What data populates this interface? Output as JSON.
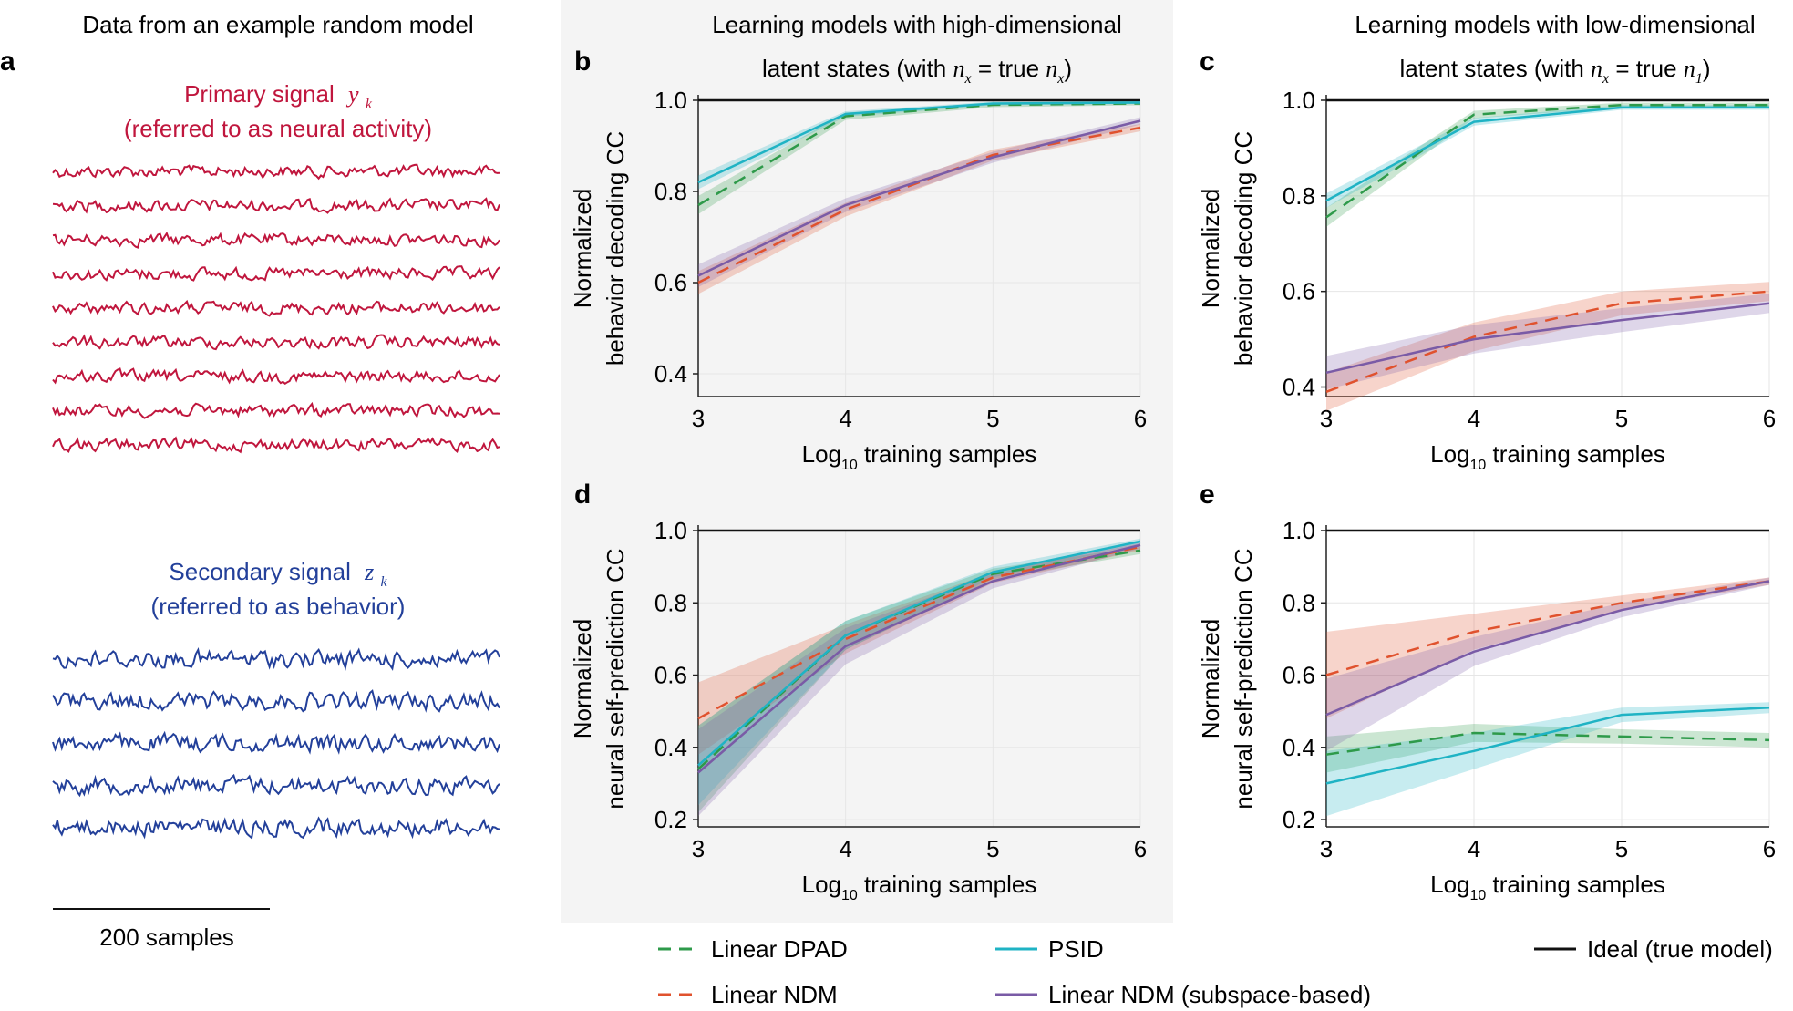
{
  "panel_a": {
    "letter": "a",
    "title": "Data from an example random model",
    "primary": {
      "label": "Primary signal",
      "symbol": "y",
      "subscript": "k",
      "sublabel": "(referred to as neural activity)",
      "n_traces": 9,
      "color": "#c0163d"
    },
    "secondary": {
      "label": "Secondary signal",
      "symbol": "z",
      "subscript": "k",
      "sublabel": "(referred to as behavior)",
      "n_traces": 5,
      "color": "#23409a"
    },
    "scalebar_label": "200 samples"
  },
  "column_titles": {
    "high": {
      "line1": "Learning models with high-dimensional",
      "line2_pre": "latent states (with ",
      "lhs": "n",
      "lhs_sub": "x",
      "mid": " = true ",
      "rhs": "n",
      "rhs_sub": "x",
      "end": ")"
    },
    "low": {
      "line1": "Learning models with low-dimensional",
      "line2_pre": "latent states (with ",
      "lhs": "n",
      "lhs_sub": "x",
      "mid": " = true ",
      "rhs": "n",
      "rhs_sub": "1",
      "end": ")"
    }
  },
  "colors": {
    "dpad": "#2e9a4a",
    "ndm": "#e0522e",
    "psid": "#1fb3c4",
    "subspace": "#7a5ba6",
    "ideal": "#111111",
    "shade_bg": "#f4f4f4"
  },
  "legend": [
    {
      "key": "dpad",
      "label": "Linear DPAD",
      "dash": true
    },
    {
      "key": "psid",
      "label": "PSID",
      "dash": false
    },
    {
      "key": "ideal",
      "label": "Ideal (true model)",
      "dash": false
    },
    {
      "key": "ndm",
      "label": "Linear NDM",
      "dash": true
    },
    {
      "key": "subspace",
      "label": "Linear NDM (subspace-based)",
      "dash": false
    }
  ],
  "chart_data": [
    {
      "id": "b",
      "letter": "b",
      "type": "line",
      "xlabel_base": "Log",
      "xlabel_sub": "10",
      "xlabel_rest": " training samples",
      "ylabel_lines": [
        "Normalized",
        "behavior decoding CC"
      ],
      "x": [
        3,
        4,
        5,
        6
      ],
      "xlim": [
        3,
        6
      ],
      "ylim": [
        0.35,
        1.0
      ],
      "yticks": [
        0.4,
        0.6,
        0.8,
        1.0
      ],
      "ytick_labels": [
        "0.4",
        "0.6",
        "0.8",
        "1.0"
      ],
      "xtick_labels": [
        "3",
        "4",
        "5",
        "6"
      ],
      "ideal": 1.0,
      "series": [
        {
          "name": "Linear DPAD",
          "key": "dpad",
          "values": [
            0.77,
            0.965,
            0.99,
            0.993
          ],
          "band": [
            0.02,
            0.008,
            0.005,
            0.004
          ]
        },
        {
          "name": "PSID",
          "key": "psid",
          "values": [
            0.82,
            0.97,
            0.993,
            0.995
          ],
          "band": [
            0.015,
            0.006,
            0.004,
            0.003
          ]
        },
        {
          "name": "Linear NDM",
          "key": "ndm",
          "values": [
            0.6,
            0.76,
            0.88,
            0.94
          ],
          "band": [
            0.025,
            0.015,
            0.012,
            0.008
          ]
        },
        {
          "name": "Linear NDM (subspace-based)",
          "key": "subspace",
          "values": [
            0.615,
            0.77,
            0.875,
            0.955
          ],
          "band": [
            0.025,
            0.015,
            0.012,
            0.008
          ]
        }
      ]
    },
    {
      "id": "c",
      "letter": "c",
      "type": "line",
      "xlabel_base": "Log",
      "xlabel_sub": "10",
      "xlabel_rest": " training samples",
      "ylabel_lines": [
        "Normalized",
        "behavior decoding CC"
      ],
      "x": [
        3,
        4,
        5,
        6
      ],
      "xlim": [
        3,
        6
      ],
      "ylim": [
        0.38,
        1.0
      ],
      "yticks": [
        0.4,
        0.6,
        0.8,
        1.0
      ],
      "ytick_labels": [
        "0.4",
        "0.6",
        "0.8",
        "1.0"
      ],
      "xtick_labels": [
        "3",
        "4",
        "5",
        "6"
      ],
      "ideal": 1.0,
      "series": [
        {
          "name": "Linear DPAD",
          "key": "dpad",
          "values": [
            0.755,
            0.97,
            0.99,
            0.99
          ],
          "band": [
            0.02,
            0.008,
            0.005,
            0.005
          ]
        },
        {
          "name": "PSID",
          "key": "psid",
          "values": [
            0.79,
            0.955,
            0.985,
            0.985
          ],
          "band": [
            0.015,
            0.008,
            0.005,
            0.005
          ]
        },
        {
          "name": "Linear NDM",
          "key": "ndm",
          "values": [
            0.39,
            0.505,
            0.575,
            0.6
          ],
          "band": [
            0.04,
            0.03,
            0.025,
            0.02
          ]
        },
        {
          "name": "Linear NDM (subspace-based)",
          "key": "subspace",
          "values": [
            0.43,
            0.5,
            0.54,
            0.575
          ],
          "band": [
            0.035,
            0.03,
            0.025,
            0.02
          ]
        }
      ]
    },
    {
      "id": "d",
      "letter": "d",
      "type": "line",
      "xlabel_base": "Log",
      "xlabel_sub": "10",
      "xlabel_rest": " training samples",
      "ylabel_lines": [
        "Normalized",
        "neural self-prediction CC"
      ],
      "x": [
        3,
        4,
        5,
        6
      ],
      "xlim": [
        3,
        6
      ],
      "ylim": [
        0.18,
        1.0
      ],
      "yticks": [
        0.2,
        0.4,
        0.6,
        0.8,
        1.0
      ],
      "ytick_labels": [
        "0.2",
        "0.4",
        "0.6",
        "0.8",
        "1.0"
      ],
      "xtick_labels": [
        "3",
        "4",
        "5",
        "6"
      ],
      "ideal": 1.0,
      "series": [
        {
          "name": "Linear DPAD",
          "key": "dpad",
          "values": [
            0.34,
            0.71,
            0.88,
            0.945
          ],
          "band": [
            0.12,
            0.04,
            0.015,
            0.01
          ]
        },
        {
          "name": "Linear NDM",
          "key": "ndm",
          "values": [
            0.48,
            0.7,
            0.87,
            0.955
          ],
          "band": [
            0.1,
            0.04,
            0.015,
            0.01
          ]
        },
        {
          "name": "PSID",
          "key": "psid",
          "values": [
            0.35,
            0.71,
            0.885,
            0.97
          ],
          "band": [
            0.11,
            0.04,
            0.015,
            0.008
          ]
        },
        {
          "name": "Linear NDM (subspace-based)",
          "key": "subspace",
          "values": [
            0.33,
            0.68,
            0.86,
            0.96
          ],
          "band": [
            0.12,
            0.05,
            0.02,
            0.01
          ]
        }
      ]
    },
    {
      "id": "e",
      "letter": "e",
      "type": "line",
      "xlabel_base": "Log",
      "xlabel_sub": "10",
      "xlabel_rest": " training samples",
      "ylabel_lines": [
        "Normalized",
        "neural self-prediction CC"
      ],
      "x": [
        3,
        4,
        5,
        6
      ],
      "xlim": [
        3,
        6
      ],
      "ylim": [
        0.18,
        1.0
      ],
      "yticks": [
        0.2,
        0.4,
        0.6,
        0.8,
        1.0
      ],
      "ytick_labels": [
        "0.2",
        "0.4",
        "0.6",
        "0.8",
        "1.0"
      ],
      "xtick_labels": [
        "3",
        "4",
        "5",
        "6"
      ],
      "ideal": 1.0,
      "series": [
        {
          "name": "Linear DPAD",
          "key": "dpad",
          "values": [
            0.38,
            0.44,
            0.43,
            0.42
          ],
          "band": [
            0.05,
            0.025,
            0.02,
            0.02
          ]
        },
        {
          "name": "PSID",
          "key": "psid",
          "values": [
            0.3,
            0.39,
            0.49,
            0.51
          ],
          "band": [
            0.09,
            0.05,
            0.02,
            0.015
          ]
        },
        {
          "name": "Linear NDM",
          "key": "ndm",
          "values": [
            0.6,
            0.72,
            0.8,
            0.86
          ],
          "band": [
            0.12,
            0.05,
            0.02,
            0.01
          ]
        },
        {
          "name": "Linear NDM (subspace-based)",
          "key": "subspace",
          "values": [
            0.49,
            0.665,
            0.78,
            0.86
          ],
          "band": [
            0.1,
            0.04,
            0.02,
            0.01
          ]
        }
      ]
    }
  ]
}
